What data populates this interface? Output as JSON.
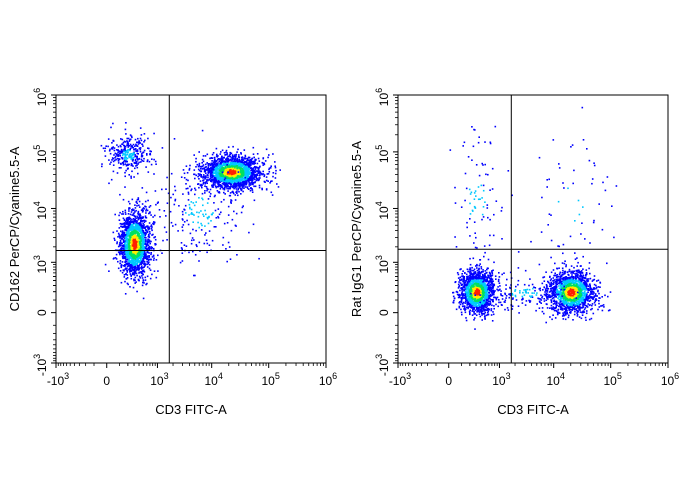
{
  "chart_data": [
    {
      "type": "scatter",
      "subtype": "flow-cytometry-density-dot-plot",
      "xlabel": "CD3 FITC-A",
      "ylabel": "CD162 PerCP/Cyanine5.5-A",
      "x_scale": "biexponential",
      "y_scale": "biexponential",
      "xlim": [
        -1000,
        1000000
      ],
      "ylim": [
        -1000,
        1000000
      ],
      "x_ticks": [
        {
          "value": -1000,
          "base": "-10",
          "exp": "3"
        },
        {
          "value": 0,
          "text": "0"
        },
        {
          "value": 1000,
          "base": "10",
          "exp": "3"
        },
        {
          "value": 10000,
          "base": "10",
          "exp": "4"
        },
        {
          "value": 100000,
          "base": "10",
          "exp": "5"
        },
        {
          "value": 1000000,
          "base": "10",
          "exp": "6"
        }
      ],
      "y_ticks": [
        {
          "value": -1000,
          "base": "-10",
          "exp": "3"
        },
        {
          "value": 0,
          "text": "0"
        },
        {
          "value": 1000,
          "base": "10",
          "exp": "3"
        },
        {
          "value": 10000,
          "base": "10",
          "exp": "4"
        },
        {
          "value": 100000,
          "base": "10",
          "exp": "5"
        },
        {
          "value": 1000000,
          "base": "10",
          "exp": "6"
        }
      ],
      "quadrant_gate": {
        "x": 1700,
        "y": 1700
      },
      "populations": [
        {
          "x": 300,
          "y": 2300,
          "spread_x": 0.16,
          "spread_y": 0.34,
          "events": 1700,
          "peak": "high"
        },
        {
          "x": 200,
          "y": 90000,
          "spread_x": 0.22,
          "spread_y": 0.2,
          "events": 330,
          "peak": "low"
        },
        {
          "x": 22000,
          "y": 45000,
          "spread_x": 0.3,
          "spread_y": 0.17,
          "events": 2000,
          "peak": "high"
        },
        {
          "x": 6000,
          "y": 9000,
          "spread_x": 0.5,
          "spread_y": 0.55,
          "events": 220,
          "peak": "low"
        }
      ],
      "grid": false,
      "legend": "none",
      "colors": [
        "#0000ff",
        "#00c8ff",
        "#00e060",
        "#ffee00",
        "#ff2000"
      ]
    },
    {
      "type": "scatter",
      "subtype": "flow-cytometry-density-dot-plot",
      "xlabel": "CD3 FITC-A",
      "ylabel": "Rat IgG1 PerCP/Cyanine5.5-A",
      "x_scale": "biexponential",
      "y_scale": "biexponential",
      "xlim": [
        -1000,
        1000000
      ],
      "ylim": [
        -1000,
        1000000
      ],
      "x_ticks": [
        {
          "value": -1000,
          "base": "-10",
          "exp": "3"
        },
        {
          "value": 0,
          "text": "0"
        },
        {
          "value": 1000,
          "base": "10",
          "exp": "3"
        },
        {
          "value": 10000,
          "base": "10",
          "exp": "4"
        },
        {
          "value": 100000,
          "base": "10",
          "exp": "5"
        },
        {
          "value": 1000000,
          "base": "10",
          "exp": "6"
        }
      ],
      "y_ticks": [
        {
          "value": -1000,
          "base": "-10",
          "exp": "3"
        },
        {
          "value": 0,
          "text": "0"
        },
        {
          "value": 1000,
          "base": "10",
          "exp": "3"
        },
        {
          "value": 10000,
          "base": "10",
          "exp": "4"
        },
        {
          "value": 100000,
          "base": "10",
          "exp": "5"
        },
        {
          "value": 1000000,
          "base": "10",
          "exp": "6"
        }
      ],
      "quadrant_gate": {
        "x": 1700,
        "y": 1800
      },
      "populations": [
        {
          "x": 300,
          "y": 200,
          "spread_x": 0.18,
          "spread_y": 0.22,
          "events": 1500,
          "peak": "high"
        },
        {
          "x": 20000,
          "y": 200,
          "spread_x": 0.24,
          "spread_y": 0.22,
          "events": 1500,
          "peak": "high"
        },
        {
          "x": 3000,
          "y": 200,
          "spread_x": 0.5,
          "spread_y": 0.2,
          "events": 150,
          "peak": "low"
        },
        {
          "x": 300,
          "y": 14000,
          "spread_x": 0.3,
          "spread_y": 0.7,
          "events": 90,
          "peak": "low"
        },
        {
          "x": 20000,
          "y": 12000,
          "spread_x": 0.45,
          "spread_y": 0.7,
          "events": 60,
          "peak": "low"
        }
      ],
      "grid": false,
      "legend": "none",
      "colors": [
        "#0000ff",
        "#00c8ff",
        "#00e060",
        "#ffee00",
        "#ff2000"
      ]
    }
  ]
}
